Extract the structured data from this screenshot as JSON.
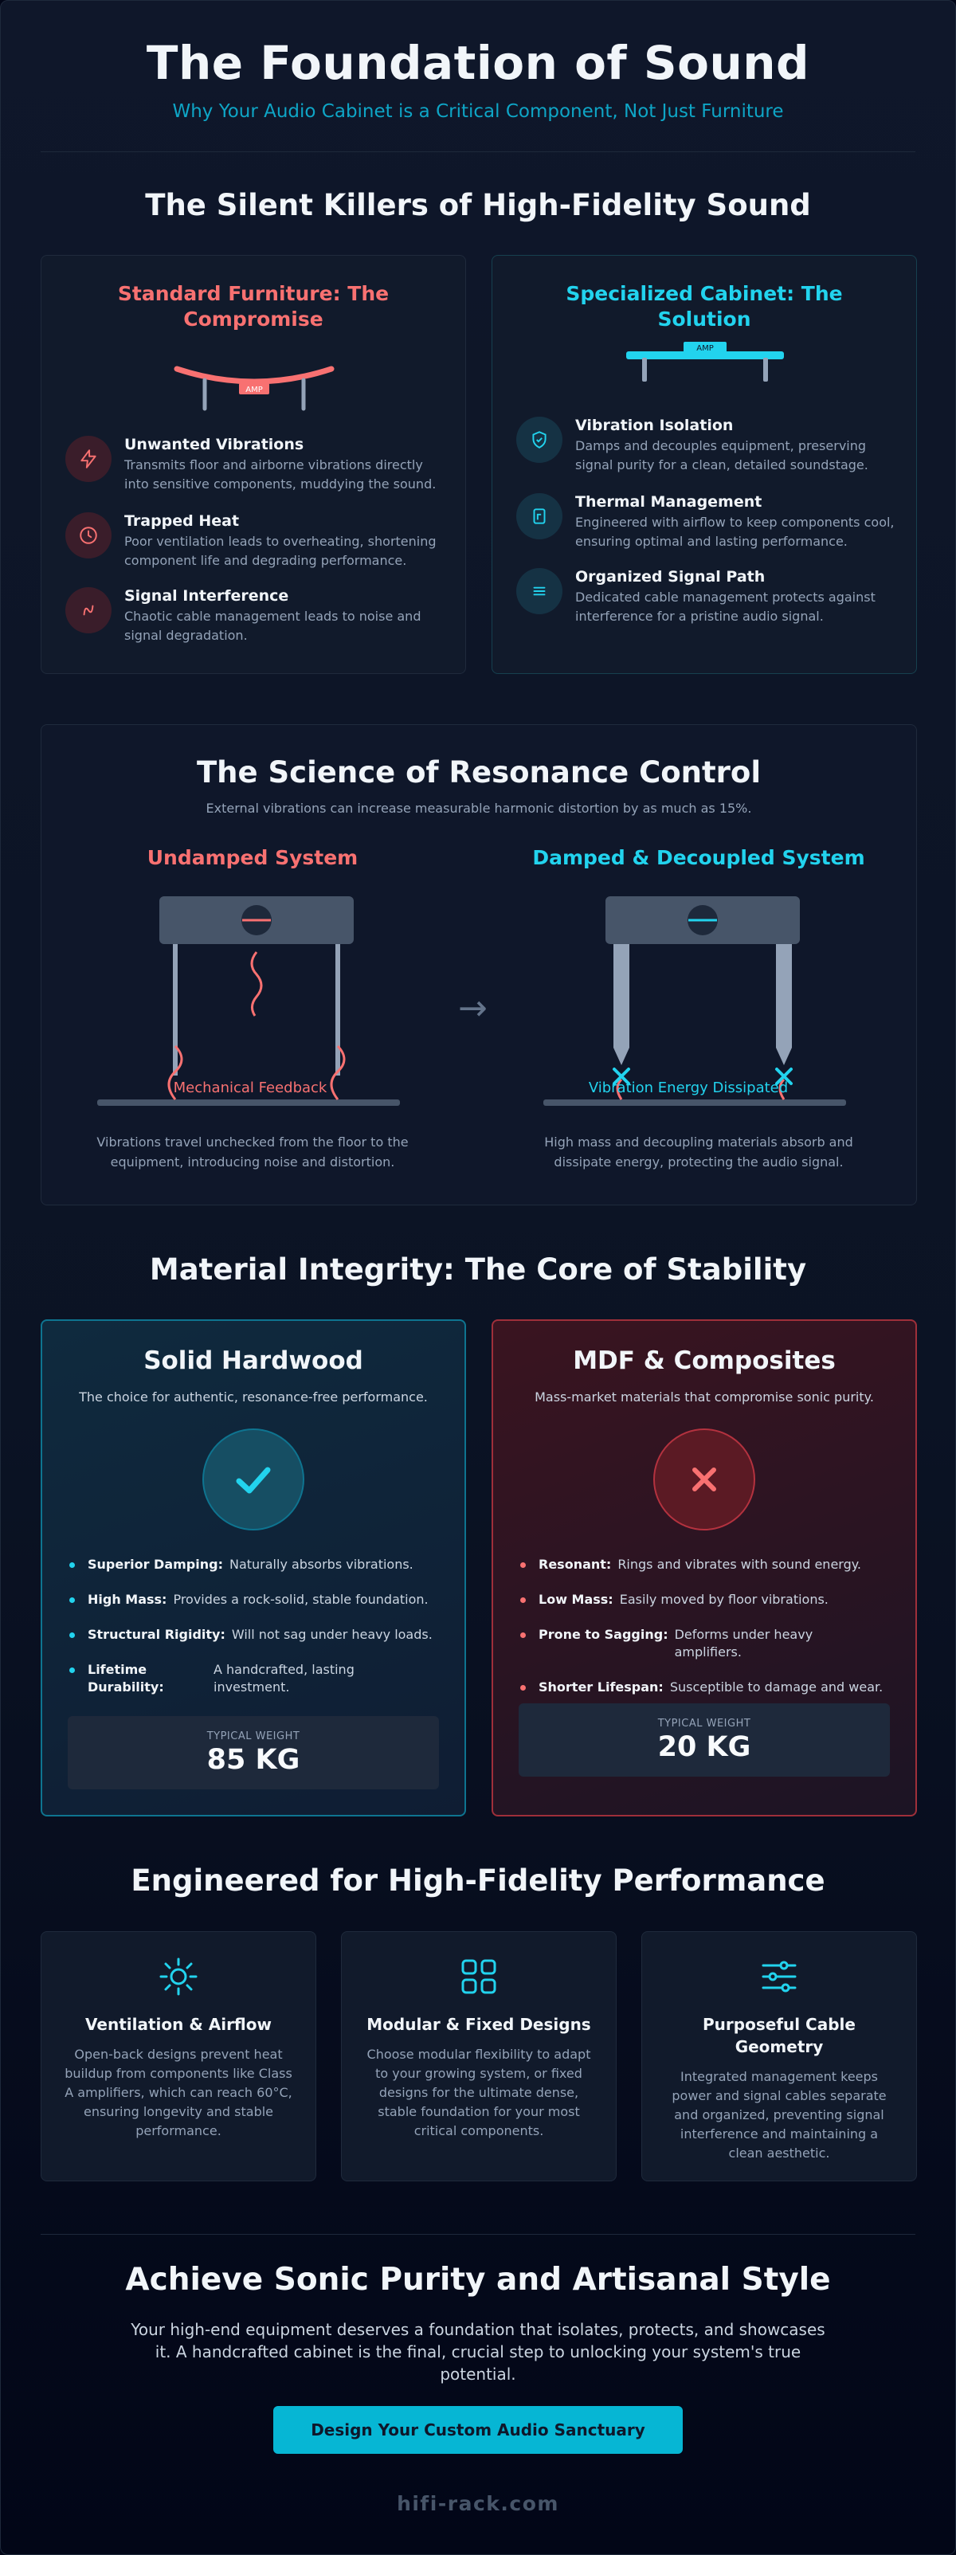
{
  "header": {
    "title": "The Foundation of Sound",
    "subtitle": "Why Your Audio Cabinet is a Critical Component, Not Just Furniture"
  },
  "killers": {
    "title": "The Silent Killers of High-Fidelity Sound",
    "standard": {
      "title": "Standard Furniture: The Compromise",
      "amp_label": "AMP",
      "items": [
        {
          "title": "Unwanted Vibrations",
          "desc": "Transmits floor and airborne vibrations directly into sensitive components, muddying the sound.",
          "icon": "lightning-icon"
        },
        {
          "title": "Trapped Heat",
          "desc": "Poor ventilation leads to overheating, shortening component life and degrading performance.",
          "icon": "clock-icon"
        },
        {
          "title": "Signal Interference",
          "desc": "Chaotic cable management leads to noise and signal degradation.",
          "icon": "wave-icon"
        }
      ]
    },
    "specialized": {
      "title": "Specialized Cabinet: The Solution",
      "amp_label": "AMP",
      "items": [
        {
          "title": "Vibration Isolation",
          "desc": "Damps and decouples equipment, preserving signal purity for a clean, detailed soundstage.",
          "icon": "shield-check-icon"
        },
        {
          "title": "Thermal Management",
          "desc": "Engineered with airflow to keep components cool, ensuring optimal and lasting performance.",
          "icon": "thermometer-icon"
        },
        {
          "title": "Organized Signal Path",
          "desc": "Dedicated cable management protects against interference for a pristine audio signal.",
          "icon": "lines-icon"
        }
      ]
    }
  },
  "resonance": {
    "title": "The Science of Resonance Control",
    "subtitle": "External vibrations can increase measurable harmonic distortion by as much as 15%.",
    "undamped": {
      "title": "Undamped System",
      "label": "Mechanical Feedback",
      "caption": "Vibrations travel unchecked from the floor to the equipment, introducing noise and distortion."
    },
    "damped": {
      "title": "Damped & Decoupled System",
      "label": "Vibration Energy Dissipated",
      "caption": "High mass and decoupling materials absorb and dissipate energy, protecting the audio signal."
    },
    "arrow": "→"
  },
  "materials": {
    "title": "Material Integrity: The Core of Stability",
    "wood": {
      "title": "Solid Hardwood",
      "tagline": "The choice for authentic, resonance-free performance.",
      "bullets": [
        {
          "label": "Superior Damping:",
          "text": "Naturally absorbs vibrations."
        },
        {
          "label": "High Mass:",
          "text": "Provides a rock-solid, stable foundation."
        },
        {
          "label": "Structural Rigidity:",
          "text": "Will not sag under heavy loads."
        },
        {
          "label": "Lifetime Durability:",
          "text": "A handcrafted, lasting investment."
        }
      ],
      "weight_label": "TYPICAL WEIGHT",
      "weight": "85 KG"
    },
    "mdf": {
      "title": "MDF & Composites",
      "tagline": "Mass-market materials that compromise sonic purity.",
      "bullets": [
        {
          "label": "Resonant:",
          "text": "Rings and vibrates with sound energy."
        },
        {
          "label": "Low Mass:",
          "text": "Easily moved by floor vibrations."
        },
        {
          "label": "Prone to Sagging:",
          "text": "Deforms under heavy amplifiers."
        },
        {
          "label": "Shorter Lifespan:",
          "text": "Susceptible to damage and wear."
        }
      ],
      "weight_label": "TYPICAL WEIGHT",
      "weight": "20 KG"
    }
  },
  "engineered": {
    "title": "Engineered for High-Fidelity Performance",
    "cards": [
      {
        "title": "Ventilation & Airflow",
        "desc": "Open-back designs prevent heat buildup from components like Class A amplifiers, which can reach 60°C, ensuring longevity and stable performance.",
        "icon": "sun-icon"
      },
      {
        "title": "Modular & Fixed Designs",
        "desc": "Choose modular flexibility to adapt to your growing system, or fixed designs for the ultimate dense, stable foundation for your most critical components.",
        "icon": "grid-icon"
      },
      {
        "title": "Purposeful Cable Geometry",
        "desc": "Integrated management keeps power and signal cables separate and organized, preventing signal interference and maintaining a clean aesthetic.",
        "icon": "sliders-icon"
      }
    ]
  },
  "final": {
    "title": "Achieve Sonic Purity and Artisanal Style",
    "text": "Your high-end equipment deserves a foundation that isolates, protects, and showcases it. A handcrafted cabinet is the final, crucial step to unlocking your system's true potential.",
    "cta": "Design Your Custom Audio Sanctuary"
  },
  "footer": "hifi-rack.com",
  "colors": {
    "red_accent": "#f87171",
    "cyan_accent": "#22d3ee",
    "cta": "#06b6d4"
  }
}
